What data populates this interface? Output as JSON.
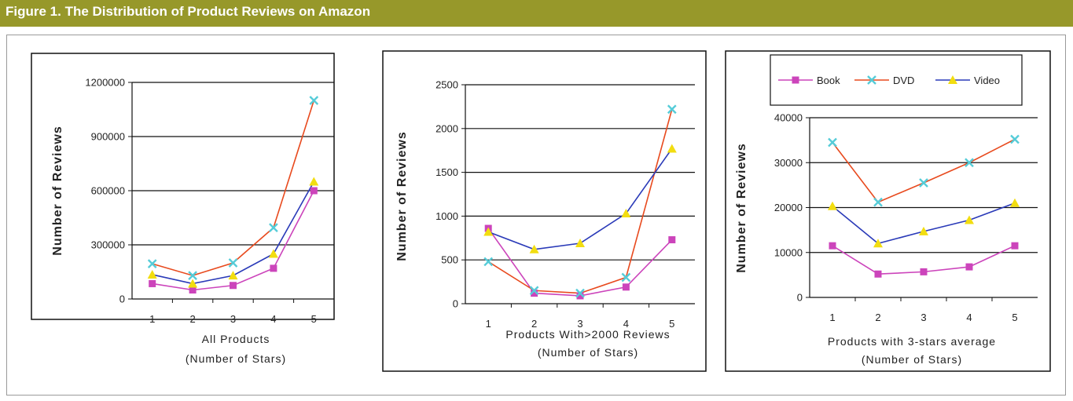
{
  "figure": {
    "title": "Figure 1. The Distribution of Product Reviews on Amazon"
  },
  "colors": {
    "header_bg": "#97982a",
    "book": "#cc44bb",
    "dvd": "#e84a1e",
    "video": "#2a3ab8",
    "dvd_marker": "#55ccd8",
    "video_marker": "#f2dd10"
  },
  "legend": {
    "entries": [
      "Book",
      "DVD",
      "Video"
    ]
  },
  "chart_data": [
    {
      "type": "line",
      "title": "",
      "xlabel": "All Products",
      "xlabel2": "(Number of Stars)",
      "ylabel": "Number of Reviews",
      "categories": [
        "1",
        "2",
        "3",
        "4",
        "5"
      ],
      "ylim": [
        0,
        1200000
      ],
      "yticks": [
        "0",
        "300000",
        "600000",
        "900000",
        "1200000"
      ],
      "grid": true,
      "series": [
        {
          "name": "Book",
          "values": [
            85000,
            50000,
            75000,
            170000,
            600000
          ]
        },
        {
          "name": "DVD",
          "values": [
            195000,
            130000,
            200000,
            395000,
            1100000
          ]
        },
        {
          "name": "Video",
          "values": [
            135000,
            85000,
            130000,
            250000,
            650000
          ]
        }
      ]
    },
    {
      "type": "line",
      "title": "",
      "xlabel": "Products With>2000 Reviews",
      "xlabel2": "(Number of Stars)",
      "ylabel": "Number of Reviews",
      "categories": [
        "1",
        "2",
        "3",
        "4",
        "5"
      ],
      "ylim": [
        0,
        2500
      ],
      "yticks": [
        "0",
        "500",
        "1000",
        "1500",
        "2000",
        "2500"
      ],
      "grid": true,
      "series": [
        {
          "name": "Book",
          "values": [
            860,
            120,
            90,
            190,
            730
          ]
        },
        {
          "name": "DVD",
          "values": [
            480,
            150,
            120,
            300,
            2220
          ]
        },
        {
          "name": "Video",
          "values": [
            820,
            620,
            690,
            1030,
            1770
          ]
        }
      ]
    },
    {
      "type": "line",
      "title": "",
      "xlabel": "Products with 3-stars average",
      "xlabel2": "(Number of Stars)",
      "ylabel": "Number of Reviews",
      "categories": [
        "1",
        "2",
        "3",
        "4",
        "5"
      ],
      "ylim": [
        0,
        40000
      ],
      "yticks": [
        "0",
        "10000",
        "20000",
        "30000",
        "40000"
      ],
      "grid": true,
      "legend": "top",
      "series": [
        {
          "name": "Book",
          "values": [
            11500,
            5200,
            5700,
            6800,
            11500
          ]
        },
        {
          "name": "DVD",
          "values": [
            34500,
            21200,
            25500,
            30000,
            35200
          ]
        },
        {
          "name": "Video",
          "values": [
            20300,
            12000,
            14700,
            17200,
            21000
          ]
        }
      ]
    }
  ]
}
